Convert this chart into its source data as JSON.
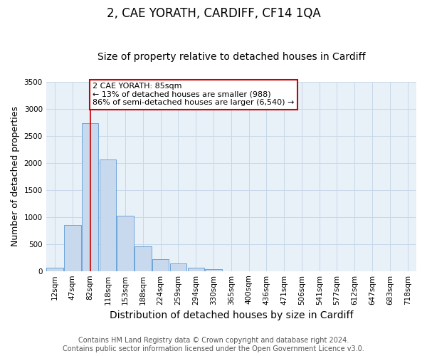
{
  "title": "2, CAE YORATH, CARDIFF, CF14 1QA",
  "subtitle": "Size of property relative to detached houses in Cardiff",
  "xlabel": "Distribution of detached houses by size in Cardiff",
  "ylabel": "Number of detached properties",
  "bin_labels": [
    "12sqm",
    "47sqm",
    "82sqm",
    "118sqm",
    "153sqm",
    "188sqm",
    "224sqm",
    "259sqm",
    "294sqm",
    "330sqm",
    "365sqm",
    "400sqm",
    "436sqm",
    "471sqm",
    "506sqm",
    "541sqm",
    "577sqm",
    "612sqm",
    "647sqm",
    "683sqm",
    "718sqm"
  ],
  "bin_values": [
    55,
    850,
    2730,
    2060,
    1020,
    455,
    215,
    145,
    60,
    30,
    0,
    0,
    0,
    0,
    0,
    0,
    0,
    0,
    0,
    0,
    0
  ],
  "bar_color": "#c9d9ed",
  "bar_edge_color": "#5b9bd5",
  "vline_x_label_idx": 2,
  "vline_color": "#cc0000",
  "annotation_line1": "2 CAE YORATH: 85sqm",
  "annotation_line2": "← 13% of detached houses are smaller (988)",
  "annotation_line3": "86% of semi-detached houses are larger (6,540) →",
  "annotation_box_color": "#ffffff",
  "annotation_box_edge": "#cc0000",
  "ylim": [
    0,
    3500
  ],
  "yticks": [
    0,
    500,
    1000,
    1500,
    2000,
    2500,
    3000,
    3500
  ],
  "grid_color": "#c8d8e8",
  "background_color": "#e8f0f8",
  "footer1": "Contains HM Land Registry data © Crown copyright and database right 2024.",
  "footer2": "Contains public sector information licensed under the Open Government Licence v3.0.",
  "title_fontsize": 12,
  "subtitle_fontsize": 10,
  "xlabel_fontsize": 10,
  "ylabel_fontsize": 9,
  "tick_fontsize": 7.5,
  "footer_fontsize": 7
}
